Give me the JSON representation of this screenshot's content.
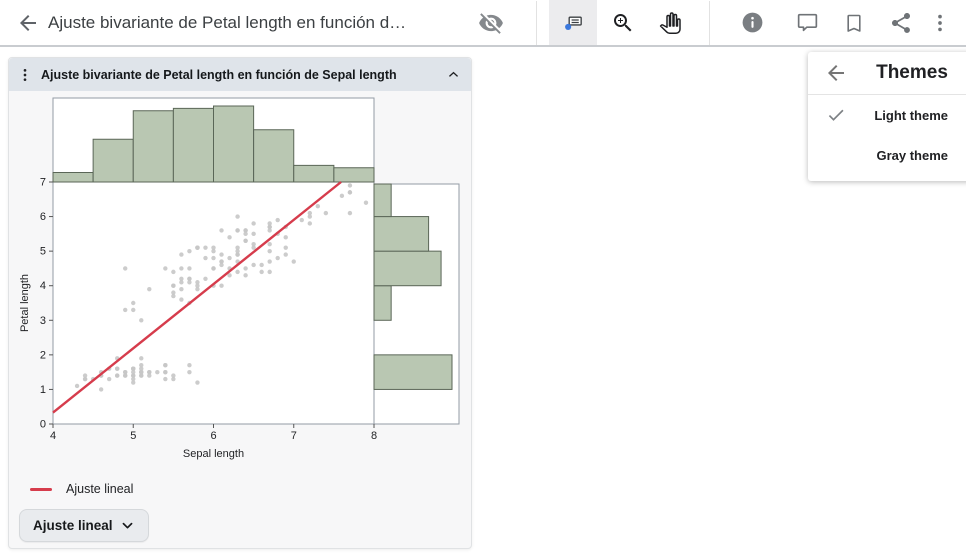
{
  "toolbar": {
    "title": "Ajuste bivariante de Petal length en función d…",
    "selected_tool": "datatip",
    "accent_color": "#3b78dd",
    "icons": {
      "back": "arrow-left",
      "visibility": "eye-off",
      "tools": [
        "datatip",
        "zoom-in",
        "pan"
      ],
      "actions": [
        "info",
        "comment",
        "bookmark",
        "share",
        "more"
      ]
    }
  },
  "report_panel": {
    "title": "Ajuste bivariante de Petal length en función de Sepal length",
    "legend": {
      "label": "Ajuste lineal"
    },
    "fit_button_label": "Ajuste lineal"
  },
  "themes_menu": {
    "title": "Themes",
    "items": [
      {
        "label": "Light theme",
        "selected": true
      },
      {
        "label": "Gray theme",
        "selected": false
      }
    ]
  },
  "chart_data": {
    "type": "scatter",
    "title": "Ajuste bivariante de Petal length en función de Sepal length",
    "xlabel": "Sepal length",
    "ylabel": "Petal length",
    "xlim": [
      4,
      8
    ],
    "ylim": [
      0,
      7
    ],
    "x_ticks": [
      4,
      5,
      6,
      7,
      8
    ],
    "y_ticks": [
      0,
      1,
      2,
      3,
      4,
      5,
      6,
      7
    ],
    "grid": false,
    "point_color": "#c6c6c6",
    "frame_color": "#939ba5",
    "points": {
      "sepal_length": [
        5.1,
        4.9,
        4.7,
        4.6,
        5.0,
        5.4,
        4.6,
        5.0,
        4.4,
        4.9,
        5.4,
        4.8,
        4.8,
        4.3,
        5.8,
        5.7,
        5.4,
        5.1,
        5.7,
        5.1,
        5.4,
        5.1,
        4.6,
        5.1,
        4.8,
        5.0,
        5.0,
        5.2,
        5.2,
        4.7,
        4.8,
        5.4,
        5.2,
        5.5,
        4.9,
        5.0,
        5.5,
        4.9,
        4.4,
        5.1,
        5.0,
        4.5,
        4.4,
        5.0,
        5.1,
        4.8,
        5.1,
        4.6,
        5.3,
        5.0,
        7.0,
        6.4,
        6.9,
        5.5,
        6.5,
        5.7,
        6.3,
        4.9,
        6.6,
        5.2,
        5.0,
        5.9,
        6.0,
        6.1,
        5.6,
        6.7,
        5.6,
        5.8,
        6.2,
        5.6,
        5.9,
        6.1,
        6.3,
        6.1,
        6.4,
        6.6,
        6.8,
        6.7,
        6.0,
        5.7,
        5.5,
        5.5,
        5.8,
        6.0,
        5.4,
        6.0,
        6.7,
        6.3,
        5.6,
        5.5,
        5.5,
        6.1,
        5.8,
        5.0,
        5.6,
        5.7,
        5.7,
        6.2,
        5.1,
        5.7,
        6.3,
        5.8,
        7.1,
        6.3,
        6.5,
        7.6,
        4.9,
        7.3,
        6.7,
        7.2,
        6.5,
        6.4,
        6.8,
        5.7,
        5.8,
        6.4,
        6.5,
        7.7,
        7.7,
        6.0,
        6.9,
        5.6,
        7.7,
        6.3,
        6.7,
        7.2,
        6.2,
        6.1,
        6.4,
        7.2,
        7.4,
        7.9,
        6.4,
        6.3,
        6.1,
        7.7,
        6.3,
        6.4,
        6.0,
        6.9,
        6.7,
        6.9,
        5.8,
        6.8,
        6.7,
        6.7,
        6.3,
        6.5,
        6.2,
        5.9
      ],
      "petal_length": [
        1.4,
        1.4,
        1.3,
        1.5,
        1.4,
        1.7,
        1.4,
        1.5,
        1.4,
        1.5,
        1.5,
        1.6,
        1.4,
        1.1,
        1.2,
        1.5,
        1.3,
        1.4,
        1.7,
        1.5,
        1.7,
        1.5,
        1.0,
        1.7,
        1.9,
        1.6,
        1.6,
        1.5,
        1.4,
        1.6,
        1.6,
        1.5,
        1.5,
        1.4,
        1.5,
        1.2,
        1.3,
        1.4,
        1.3,
        1.5,
        1.3,
        1.3,
        1.3,
        1.6,
        1.9,
        1.4,
        1.6,
        1.4,
        1.5,
        1.4,
        4.7,
        4.5,
        4.9,
        4.0,
        4.6,
        4.5,
        4.7,
        3.3,
        4.6,
        3.9,
        3.5,
        4.2,
        4.0,
        4.7,
        3.6,
        4.4,
        4.5,
        4.1,
        4.5,
        3.9,
        4.8,
        4.0,
        4.9,
        4.7,
        4.3,
        4.4,
        4.8,
        5.0,
        4.5,
        3.5,
        3.8,
        3.7,
        3.9,
        5.1,
        4.5,
        4.5,
        4.7,
        4.4,
        4.1,
        4.0,
        4.4,
        4.6,
        4.0,
        3.3,
        4.2,
        4.2,
        4.2,
        4.3,
        3.0,
        4.1,
        6.0,
        5.1,
        5.9,
        5.6,
        5.8,
        6.6,
        4.5,
        6.3,
        5.8,
        6.1,
        5.1,
        5.3,
        5.5,
        5.0,
        5.1,
        5.3,
        5.5,
        6.7,
        6.9,
        5.0,
        5.7,
        4.9,
        6.7,
        4.9,
        5.7,
        6.0,
        4.8,
        4.9,
        5.6,
        5.8,
        6.1,
        6.4,
        5.6,
        5.1,
        5.6,
        6.1,
        5.6,
        5.5,
        4.8,
        5.4,
        5.6,
        5.1,
        5.1,
        5.9,
        5.7,
        5.2,
        5.0,
        5.2,
        5.4,
        5.1
      ]
    },
    "fit_line": {
      "label": "Ajuste lineal",
      "slope": 1.858,
      "intercept": -7.101,
      "color": "#d63c4c"
    },
    "marginal_histograms": {
      "fill": "#b9c7b2",
      "stroke": "#5a6657",
      "top": {
        "variable": "Sepal length",
        "bin_start": 4,
        "bin_width": 0.5,
        "counts": [
          4,
          18,
          30,
          31,
          32,
          22,
          7,
          6
        ]
      },
      "right": {
        "variable": "Petal length",
        "bin_start": 0,
        "bin_width": 1,
        "counts": [
          0,
          50,
          0,
          11,
          43,
          35,
          11
        ]
      }
    },
    "legend": {
      "position": "bottom-left",
      "entries": [
        "Ajuste lineal"
      ]
    }
  }
}
